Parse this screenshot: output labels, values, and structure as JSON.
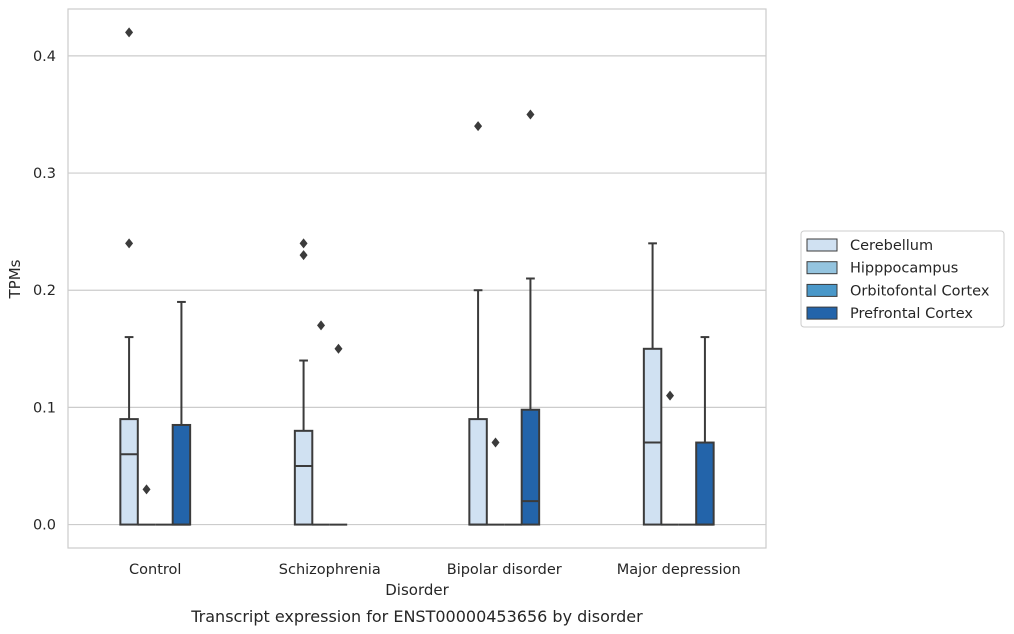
{
  "caption": "Transcript expression for ENST00000453656 by disorder",
  "chart_data": {
    "type": "box",
    "xlabel": "Disorder",
    "ylabel": "TPMs",
    "ylim": [
      -0.02,
      0.44
    ],
    "yticks": [
      0.0,
      0.1,
      0.2,
      0.3,
      0.4
    ],
    "ytick_labels": [
      "0.0",
      "0.1",
      "0.2",
      "0.3",
      "0.4"
    ],
    "grid": "horizontal",
    "legend_position": "right",
    "categories": [
      "Control",
      "Schizophrenia",
      "Bipolar disorder",
      "Major depression"
    ],
    "series": [
      {
        "name": "Cerebellum",
        "color": "#d0e1f2",
        "boxes": [
          {
            "q1": 0.0,
            "median": 0.06,
            "q3": 0.09,
            "whislo": 0.0,
            "whishi": 0.16,
            "fliers": [
              0.24,
              0.42
            ]
          },
          {
            "q1": 0.0,
            "median": 0.05,
            "q3": 0.08,
            "whislo": 0.0,
            "whishi": 0.14,
            "fliers": [
              0.23,
              0.24
            ]
          },
          {
            "q1": 0.0,
            "median": 0.0,
            "q3": 0.09,
            "whislo": 0.0,
            "whishi": 0.2,
            "fliers": [
              0.34
            ]
          },
          {
            "q1": 0.0,
            "median": 0.07,
            "q3": 0.15,
            "whislo": 0.0,
            "whishi": 0.24,
            "fliers": []
          }
        ]
      },
      {
        "name": "Hipppocampus",
        "color": "#94c4df",
        "boxes": [
          {
            "q1": 0.0,
            "median": 0.0,
            "q3": 0.0,
            "whislo": 0.0,
            "whishi": 0.0,
            "fliers": [
              0.03
            ]
          },
          {
            "q1": 0.0,
            "median": 0.0,
            "q3": 0.0,
            "whislo": 0.0,
            "whishi": 0.0,
            "fliers": [
              0.17
            ]
          },
          {
            "q1": 0.0,
            "median": 0.0,
            "q3": 0.0,
            "whislo": 0.0,
            "whishi": 0.0,
            "fliers": [
              0.07
            ]
          },
          {
            "q1": 0.0,
            "median": 0.0,
            "q3": 0.0,
            "whislo": 0.0,
            "whishi": 0.0,
            "fliers": [
              0.11
            ]
          }
        ]
      },
      {
        "name": "Orbitofontal Cortex",
        "color": "#4a98c9",
        "boxes": [
          {
            "q1": 0.0,
            "median": 0.0,
            "q3": 0.0,
            "whislo": 0.0,
            "whishi": 0.0,
            "fliers": []
          },
          {
            "q1": 0.0,
            "median": 0.0,
            "q3": 0.0,
            "whislo": 0.0,
            "whishi": 0.0,
            "fliers": [
              0.15
            ]
          },
          {
            "q1": 0.0,
            "median": 0.0,
            "q3": 0.0,
            "whislo": 0.0,
            "whishi": 0.0,
            "fliers": []
          },
          {
            "q1": 0.0,
            "median": 0.0,
            "q3": 0.0,
            "whislo": 0.0,
            "whishi": 0.0,
            "fliers": []
          }
        ]
      },
      {
        "name": "Prefrontal Cortex",
        "color": "#2364aa",
        "boxes": [
          {
            "q1": 0.0,
            "median": 0.0,
            "q3": 0.085,
            "whislo": 0.0,
            "whishi": 0.19,
            "fliers": []
          },
          null,
          {
            "q1": 0.0,
            "median": 0.02,
            "q3": 0.098,
            "whislo": 0.0,
            "whishi": 0.21,
            "fliers": [
              0.35
            ]
          },
          {
            "q1": 0.0,
            "median": 0.0,
            "q3": 0.07,
            "whislo": 0.0,
            "whishi": 0.16,
            "fliers": []
          }
        ]
      }
    ]
  }
}
